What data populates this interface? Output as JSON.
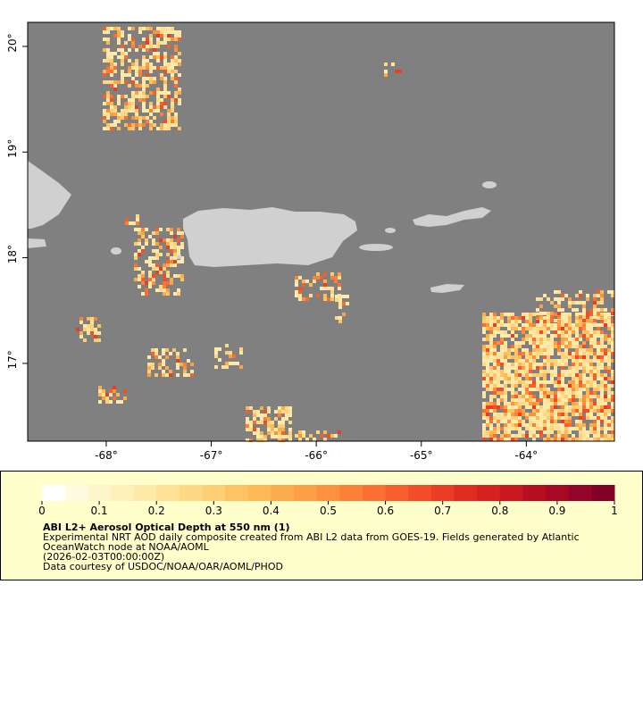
{
  "map": {
    "lon_range": [
      -68.748,
      -63.161
    ],
    "lat_range": [
      16.264,
      20.228
    ],
    "lon_ticks": [
      {
        "value": -68,
        "label": "-68°"
      },
      {
        "value": -67,
        "label": "-67°"
      },
      {
        "value": -66,
        "label": "-66°"
      },
      {
        "value": -65,
        "label": "-65°"
      },
      {
        "value": -64,
        "label": "-64°"
      }
    ],
    "lat_ticks": [
      {
        "value": 20,
        "label": "20°"
      },
      {
        "value": 19,
        "label": "19°"
      },
      {
        "value": 18,
        "label": "18°"
      },
      {
        "value": 17,
        "label": "17°"
      }
    ]
  },
  "colorbar": {
    "range": [
      0,
      1
    ],
    "ticks": [
      0,
      0.1,
      0.2,
      0.3,
      0.4,
      0.5,
      0.6,
      0.7,
      0.8,
      0.9,
      1
    ],
    "colors": [
      "#ffffff",
      "#fffbe0",
      "#fff5cc",
      "#ffefb8",
      "#fee9a8",
      "#fee196",
      "#fed985",
      "#fecf74",
      "#fec463",
      "#feb855",
      "#fdac4b",
      "#fd9f44",
      "#fd913e",
      "#fc8038",
      "#fb6f33",
      "#f85e2e",
      "#f24d29",
      "#ea3d25",
      "#e02d22",
      "#d5211f",
      "#c8171f",
      "#b80e22",
      "#a60826",
      "#940428",
      "#800026"
    ]
  },
  "caption": {
    "title": "ABI L2+ Aerosol Optical Depth at 550 nm (1)",
    "lines": [
      "Experimental NRT AOD daily composite created from ABI L2 data from GOES-19. Fields generated by Atlantic",
      "OceanWatch node at NOAA/AOML",
      "(2026-02-03T00:00:00Z)",
      "Data courtesy of USDOC/NOAA/OAR/AOML/PHOD"
    ]
  }
}
